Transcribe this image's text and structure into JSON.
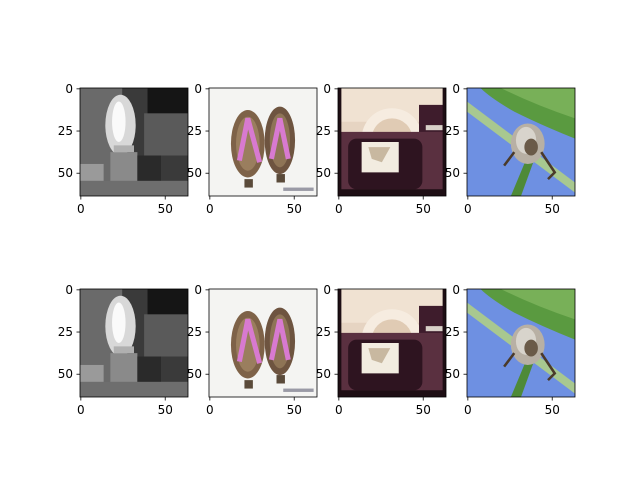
{
  "chart_data": {
    "type": "image_grid",
    "rows": 2,
    "cols": 4,
    "image_size": [
      64,
      64
    ],
    "xticks": [
      0,
      50
    ],
    "yticks": [
      0,
      25,
      50
    ],
    "panels": [
      {
        "row": 0,
        "col": 0,
        "depicts": "grayscale scene with a bright flame and a box"
      },
      {
        "row": 0,
        "col": 1,
        "depicts": "pair of wooden sandals with pink straps"
      },
      {
        "row": 0,
        "col": 2,
        "depicts": "vintage camera with a flash reflector"
      },
      {
        "row": 0,
        "col": 3,
        "depicts": "insect on a green stem against blue sky"
      },
      {
        "row": 1,
        "col": 0,
        "depicts": "grayscale scene with a bright flame and a box"
      },
      {
        "row": 1,
        "col": 1,
        "depicts": "pair of wooden sandals with pink straps"
      },
      {
        "row": 1,
        "col": 2,
        "depicts": "vintage camera with a flash reflector"
      },
      {
        "row": 1,
        "col": 3,
        "depicts": "insect on a green stem against blue sky"
      }
    ]
  },
  "colors": {
    "flame_scene": [
      "#1a1a1a",
      "#5a5a5a",
      "#c8c8c8",
      "#f5f5f5"
    ],
    "sandals": [
      "#f2f2f0",
      "#7a5a3a",
      "#d47ac8",
      "#e8e0d8"
    ],
    "camera": [
      "#e8d8c8",
      "#3a1a2a",
      "#f5f0e8",
      "#8a6a5a"
    ],
    "insect": [
      "#6a8ae0",
      "#4a9a3a",
      "#d0d0c8",
      "#5a4a3a"
    ]
  }
}
